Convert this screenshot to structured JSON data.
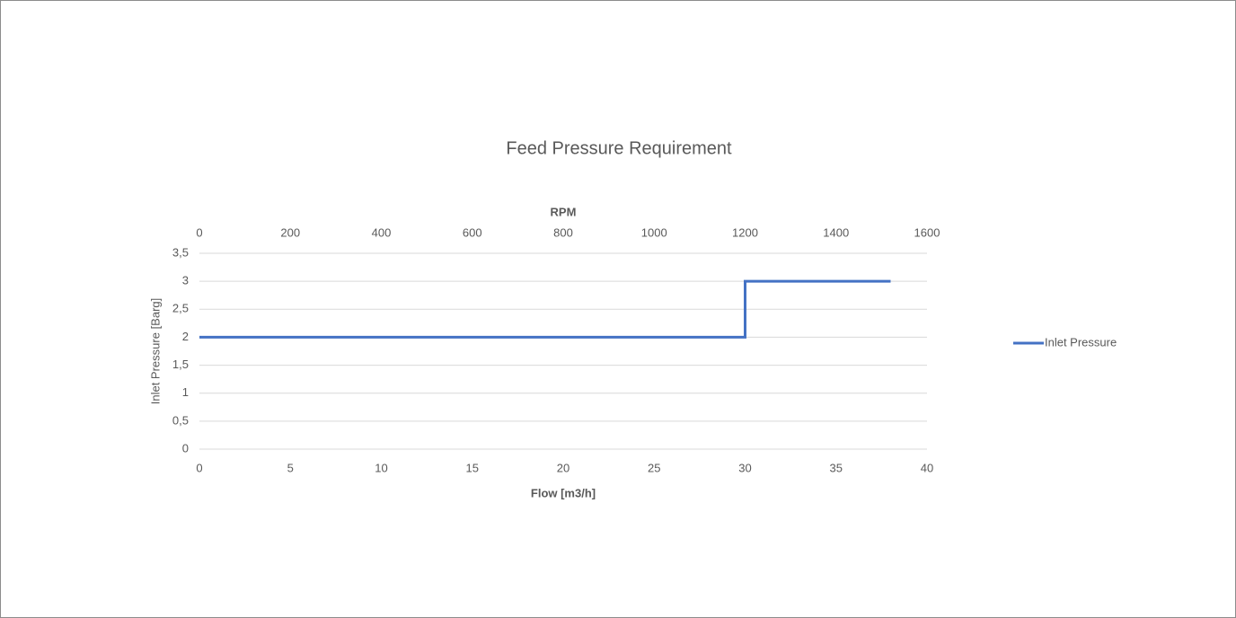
{
  "chart_data": {
    "type": "line",
    "title": "Feed Pressure Requirement",
    "xlabel": "Flow [m3/h]",
    "ylabel": "Inlet Pressure [Barg]",
    "x2label": "RPM",
    "xlim": [
      0,
      40
    ],
    "xticks": [
      0,
      5,
      10,
      15,
      20,
      25,
      30,
      35,
      40
    ],
    "x2lim": [
      0,
      1600
    ],
    "x2ticks": [
      0,
      200,
      400,
      600,
      800,
      1000,
      1200,
      1400,
      1600
    ],
    "ylim": [
      0,
      3.5
    ],
    "yticks": [
      0,
      {
        "value": 0.5,
        "label": "0,5"
      },
      1,
      {
        "value": 1.5,
        "label": "1,5"
      },
      2,
      {
        "value": 2.5,
        "label": "2,5"
      },
      3,
      {
        "value": 3.5,
        "label": "3,5"
      }
    ],
    "grid": true,
    "legend": "right",
    "series": [
      {
        "name": "Inlet Pressure",
        "color": "#4472c4",
        "x": [
          0,
          30,
          30,
          38
        ],
        "values": [
          2,
          2,
          3,
          3
        ]
      }
    ]
  }
}
